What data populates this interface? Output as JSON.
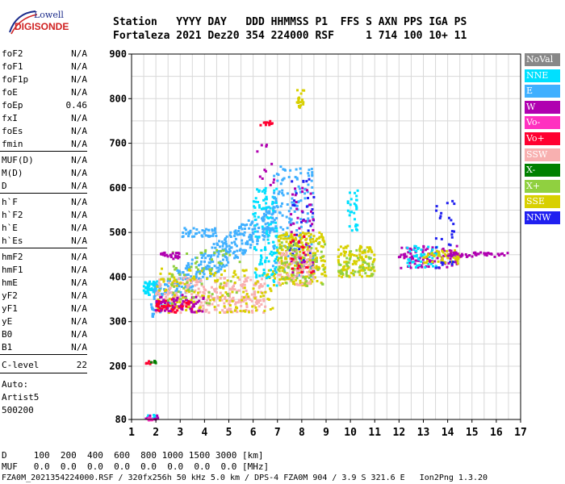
{
  "logo": {
    "top": "Lowell",
    "main": "DIGISONDE"
  },
  "header": {
    "line1": "Station   YYYY DAY   DDD HHMMSS P1  FFS S AXN PPS IGA PS",
    "line2": "Fortaleza 2021 Dez20 354 224000 RSF     1 714 100 10+ 11"
  },
  "params_group1": [
    {
      "key": "foF2",
      "value": "N/A"
    },
    {
      "key": "foF1",
      "value": "N/A"
    },
    {
      "key": "foF1p",
      "value": "N/A"
    },
    {
      "key": "foE",
      "value": "N/A"
    },
    {
      "key": "foEp",
      "value": "0.46"
    },
    {
      "key": "fxI",
      "value": "N/A"
    },
    {
      "key": "foEs",
      "value": "N/A"
    },
    {
      "key": "fmin",
      "value": "N/A"
    }
  ],
  "params_group2": [
    {
      "key": "MUF(D)",
      "value": "N/A"
    },
    {
      "key": "M(D)",
      "value": "N/A"
    },
    {
      "key": "D",
      "value": "N/A"
    }
  ],
  "params_group3": [
    {
      "key": "h`F",
      "value": "N/A"
    },
    {
      "key": "h`F2",
      "value": "N/A"
    },
    {
      "key": "h`E",
      "value": "N/A"
    },
    {
      "key": "h`Es",
      "value": "N/A"
    }
  ],
  "params_group4": [
    {
      "key": "hmF2",
      "value": "N/A"
    },
    {
      "key": "hmF1",
      "value": "N/A"
    },
    {
      "key": "hmE",
      "value": "N/A"
    },
    {
      "key": "yF2",
      "value": "N/A"
    },
    {
      "key": "yF1",
      "value": "N/A"
    },
    {
      "key": "yE",
      "value": "N/A"
    },
    {
      "key": "B0",
      "value": "N/A"
    },
    {
      "key": "B1",
      "value": "N/A"
    }
  ],
  "clevel": {
    "key": "C-level",
    "value": "22"
  },
  "auto": {
    "line1": "Auto:",
    "line2": "Artist5",
    "line3": "500200"
  },
  "legend": [
    {
      "label": "NoVal",
      "color": "#888888"
    },
    {
      "label": "NNE",
      "color": "#00e0ff"
    },
    {
      "label": "E",
      "color": "#40b0ff"
    },
    {
      "label": "W",
      "color": "#b000b0"
    },
    {
      "label": "Vo-",
      "color": "#ff30c0"
    },
    {
      "label": "Vo+",
      "color": "#ff0030"
    },
    {
      "label": "SSW",
      "color": "#f8b0b0"
    },
    {
      "label": "X-",
      "color": "#008000"
    },
    {
      "label": "X+",
      "color": "#90d040"
    },
    {
      "label": "SSE",
      "color": "#d8d000"
    },
    {
      "label": "NNW",
      "color": "#2020f0"
    }
  ],
  "bottom": {
    "line_d": "D     100  200  400  600  800 1000 1500 3000 [km]",
    "line_muf": "MUF   0.0  0.0  0.0  0.0  0.0  0.0  0.0  0.0 [MHz]",
    "footer": "FZA0M_2021354224000.RSF / 320fx256h 50 kHz 5.0 km / DPS-4 FZA0M 904 / 3.9 S 321.6 E   Ion2Png 1.3.20"
  },
  "chart_data": {
    "type": "scatter",
    "x_ticks": [
      1,
      2,
      3,
      4,
      5,
      6,
      7,
      8,
      9,
      10,
      11,
      12,
      13,
      14,
      15,
      16,
      17
    ],
    "y_ticks": [
      80,
      200,
      300,
      400,
      500,
      600,
      700,
      800,
      900
    ],
    "xlim": [
      1,
      17
    ],
    "ylim": [
      80,
      900
    ],
    "grid": true,
    "legend_placement": "right",
    "clusters": [
      {
        "color": "NNE",
        "x": [
          1.6,
          2.1
        ],
        "y": [
          80,
          90
        ],
        "n": 12
      },
      {
        "color": "W",
        "x": [
          1.5,
          2.1
        ],
        "y": [
          78,
          90
        ],
        "n": 10
      },
      {
        "color": "Vo-",
        "x": [
          1.5,
          2.0
        ],
        "y": [
          78,
          84
        ],
        "n": 8
      },
      {
        "color": "Vo+",
        "x": [
          1.5,
          1.9
        ],
        "y": [
          205,
          212
        ],
        "n": 6
      },
      {
        "color": "X-",
        "x": [
          1.8,
          2.1
        ],
        "y": [
          205,
          212
        ],
        "n": 5
      },
      {
        "color": "NNE",
        "x": [
          1.5,
          2.2
        ],
        "y": [
          360,
          390
        ],
        "n": 60
      },
      {
        "color": "E",
        "x": [
          1.8,
          7.0
        ],
        "y": [
          340,
          540
        ],
        "n": 380,
        "trend": true
      },
      {
        "color": "SSW",
        "x": [
          2.0,
          6.5
        ],
        "y": [
          320,
          400
        ],
        "n": 280
      },
      {
        "color": "SSE",
        "x": [
          2.0,
          7.0
        ],
        "y": [
          320,
          420
        ],
        "n": 160
      },
      {
        "color": "Vo+",
        "x": [
          2.0,
          3.5
        ],
        "y": [
          320,
          350
        ],
        "n": 60
      },
      {
        "color": "W",
        "x": [
          2.0,
          4.0
        ],
        "y": [
          320,
          360
        ],
        "n": 50
      },
      {
        "color": "X+",
        "x": [
          2.5,
          5.5
        ],
        "y": [
          340,
          460
        ],
        "n": 60
      },
      {
        "color": "W",
        "x": [
          2.2,
          3.0
        ],
        "y": [
          440,
          455
        ],
        "n": 25
      },
      {
        "color": "E",
        "x": [
          3.0,
          4.5
        ],
        "y": [
          490,
          510
        ],
        "n": 40
      },
      {
        "color": "NNE",
        "x": [
          6.0,
          7.0
        ],
        "y": [
          380,
          600
        ],
        "n": 120
      },
      {
        "color": "E",
        "x": [
          6.8,
          8.5
        ],
        "y": [
          400,
          650
        ],
        "n": 150
      },
      {
        "color": "SSE",
        "x": [
          7.0,
          9.0
        ],
        "y": [
          380,
          500
        ],
        "n": 260
      },
      {
        "color": "NNW",
        "x": [
          7.5,
          8.5
        ],
        "y": [
          400,
          620
        ],
        "n": 40
      },
      {
        "color": "W",
        "x": [
          7.5,
          8.5
        ],
        "y": [
          400,
          600
        ],
        "n": 40
      },
      {
        "color": "SSW",
        "x": [
          7.0,
          8.5
        ],
        "y": [
          380,
          460
        ],
        "n": 80
      },
      {
        "color": "X+",
        "x": [
          7.0,
          9.0
        ],
        "y": [
          380,
          480
        ],
        "n": 60
      },
      {
        "color": "Vo+",
        "x": [
          7.5,
          8.5
        ],
        "y": [
          400,
          500
        ],
        "n": 20
      },
      {
        "color": "SSE",
        "x": [
          9.5,
          11.0
        ],
        "y": [
          400,
          470
        ],
        "n": 120
      },
      {
        "color": "X+",
        "x": [
          9.5,
          11.0
        ],
        "y": [
          400,
          460
        ],
        "n": 40
      },
      {
        "color": "NNE",
        "x": [
          9.9,
          10.3
        ],
        "y": [
          500,
          600
        ],
        "n": 30
      },
      {
        "color": "W",
        "x": [
          12.0,
          14.5
        ],
        "y": [
          420,
          470
        ],
        "n": 90
      },
      {
        "color": "NNE",
        "x": [
          12.3,
          13.7
        ],
        "y": [
          420,
          470
        ],
        "n": 50
      },
      {
        "color": "SSE",
        "x": [
          13.0,
          14.5
        ],
        "y": [
          430,
          460
        ],
        "n": 50
      },
      {
        "color": "NNW",
        "x": [
          13.5,
          14.3
        ],
        "y": [
          420,
          580
        ],
        "n": 30
      },
      {
        "color": "W",
        "x": [
          14.0,
          16.5
        ],
        "y": [
          445,
          455
        ],
        "n": 50
      },
      {
        "color": "SSE",
        "x": [
          7.8,
          8.1
        ],
        "y": [
          780,
          820
        ],
        "n": 20
      },
      {
        "color": "Vo+",
        "x": [
          6.3,
          6.8
        ],
        "y": [
          740,
          750
        ],
        "n": 10
      },
      {
        "color": "W",
        "x": [
          6.0,
          7.0
        ],
        "y": [
          600,
          700
        ],
        "n": 12
      }
    ]
  }
}
